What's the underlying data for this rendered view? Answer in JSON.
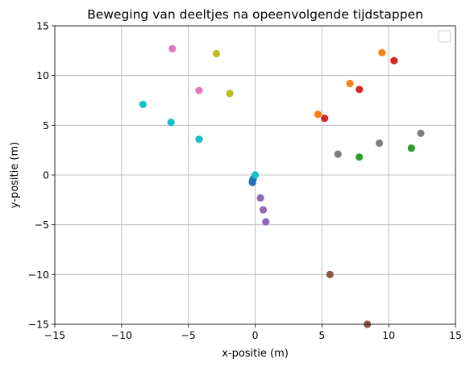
{
  "chart_data": {
    "type": "scatter",
    "title": "Beweging van deeltjes na opeenvolgende tijdstappen",
    "xlabel": "x-positie (m)",
    "ylabel": "y-positie (m)",
    "xlim": [
      -15,
      15
    ],
    "ylim": [
      -15,
      15
    ],
    "xticks": [
      -15,
      -10,
      -5,
      0,
      5,
      10,
      15
    ],
    "yticks": [
      -15,
      -10,
      -5,
      0,
      5,
      10,
      15
    ],
    "xtick_labels": [
      "−15",
      "−10",
      "−5",
      "0",
      "5",
      "10",
      "15"
    ],
    "ytick_labels": [
      "−15",
      "−10",
      "−5",
      "0",
      "5",
      "10",
      "15"
    ],
    "grid": true,
    "legend": "top-right",
    "series": [
      {
        "color": "#1f77b4",
        "points": [
          [
            -0.15,
            -0.4
          ],
          [
            -0.2,
            -0.6
          ],
          [
            -0.2,
            -0.75
          ]
        ]
      },
      {
        "color": "#ff7f0e",
        "points": [
          [
            4.7,
            6.1
          ],
          [
            7.1,
            9.2
          ],
          [
            9.5,
            12.3
          ]
        ]
      },
      {
        "color": "#2ca02c",
        "points": [
          [
            7.8,
            1.8
          ],
          [
            11.7,
            2.7
          ]
        ]
      },
      {
        "color": "#d62728",
        "points": [
          [
            5.2,
            5.7
          ],
          [
            7.8,
            8.6
          ],
          [
            10.4,
            11.5
          ]
        ]
      },
      {
        "color": "#9467bd",
        "points": [
          [
            0.4,
            -2.3
          ],
          [
            0.6,
            -3.5
          ],
          [
            0.8,
            -4.7
          ]
        ]
      },
      {
        "color": "#8c564b",
        "points": [
          [
            5.6,
            -10.0
          ],
          [
            8.4,
            -15.0
          ]
        ]
      },
      {
        "color": "#e377c2",
        "points": [
          [
            -4.2,
            8.5
          ],
          [
            -6.2,
            12.7
          ]
        ]
      },
      {
        "color": "#7f7f7f",
        "points": [
          [
            6.2,
            2.1
          ],
          [
            9.3,
            3.2
          ],
          [
            12.4,
            4.2
          ]
        ]
      },
      {
        "color": "#bcbd22",
        "points": [
          [
            -1.9,
            8.2
          ],
          [
            -2.9,
            12.2
          ]
        ]
      },
      {
        "color": "#17becf",
        "points": [
          [
            0.0,
            0.0
          ],
          [
            -4.2,
            3.6
          ],
          [
            -6.3,
            5.3
          ],
          [
            -8.4,
            7.1
          ]
        ]
      }
    ]
  }
}
